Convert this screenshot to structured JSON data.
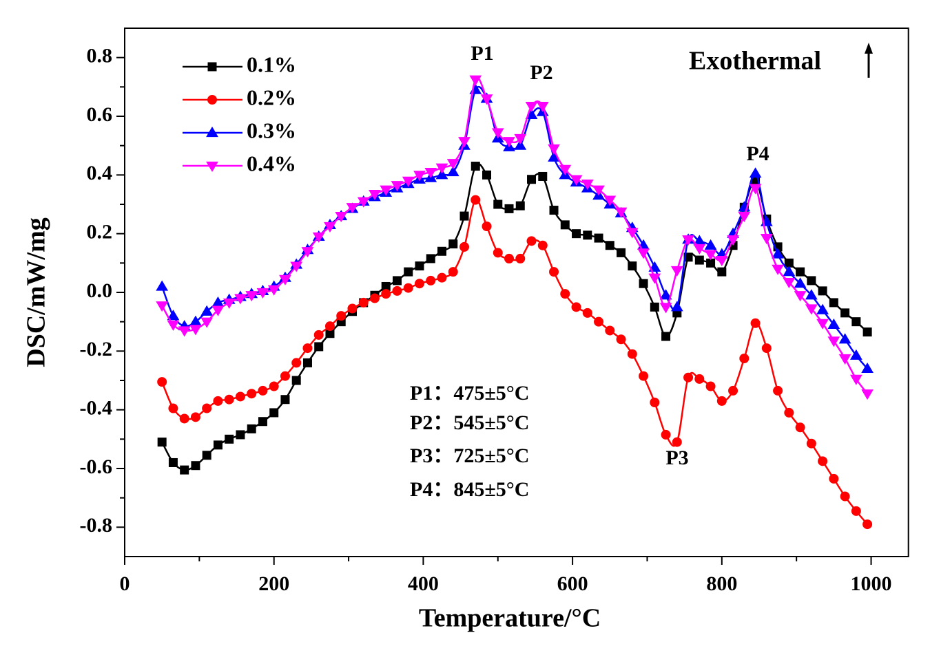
{
  "chart_data": {
    "type": "line",
    "xlabel": "Temperature/°C",
    "ylabel": "DSC/mW/mg",
    "xlim": [
      0,
      1050
    ],
    "ylim": [
      -0.9,
      0.9
    ],
    "xticks": [
      0,
      200,
      400,
      600,
      800,
      1000
    ],
    "yticks": [
      -0.8,
      -0.6,
      -0.4,
      -0.2,
      {
        "value": 0,
        "label": "0.0"
      },
      0.2,
      0.4,
      0.6,
      0.8
    ],
    "legend": "upper left",
    "x": [
      50,
      65,
      80,
      95,
      110,
      125,
      140,
      155,
      170,
      185,
      200,
      215,
      230,
      245,
      260,
      275,
      290,
      305,
      320,
      335,
      350,
      365,
      380,
      395,
      410,
      425,
      440,
      455,
      470,
      485,
      500,
      515,
      530,
      545,
      560,
      575,
      590,
      605,
      620,
      635,
      650,
      665,
      680,
      695,
      710,
      725,
      740,
      755,
      770,
      785,
      800,
      815,
      830,
      845,
      860,
      875,
      890,
      905,
      920,
      935,
      950,
      965,
      980,
      995
    ],
    "series": [
      {
        "name": "0.1%",
        "color": "#000000",
        "marker": "square",
        "values": [
          -0.51,
          -0.58,
          -0.605,
          -0.59,
          -0.555,
          -0.52,
          -0.5,
          -0.485,
          -0.465,
          -0.44,
          -0.41,
          -0.365,
          -0.3,
          -0.24,
          -0.185,
          -0.14,
          -0.1,
          -0.065,
          -0.035,
          -0.01,
          0.02,
          0.04,
          0.07,
          0.09,
          0.115,
          0.14,
          0.165,
          0.26,
          0.43,
          0.4,
          0.3,
          0.285,
          0.295,
          0.385,
          0.395,
          0.28,
          0.23,
          0.2,
          0.195,
          0.185,
          0.16,
          0.135,
          0.09,
          0.03,
          -0.05,
          -0.15,
          -0.07,
          0.12,
          0.11,
          0.1,
          0.07,
          0.16,
          0.29,
          0.38,
          0.25,
          0.155,
          0.1,
          0.07,
          0.04,
          0.005,
          -0.035,
          -0.07,
          -0.1,
          -0.135
        ]
      },
      {
        "name": "0.2%",
        "color": "#ff0000",
        "marker": "circle",
        "values": [
          -0.305,
          -0.395,
          -0.43,
          -0.425,
          -0.395,
          -0.37,
          -0.365,
          -0.355,
          -0.345,
          -0.335,
          -0.32,
          -0.285,
          -0.24,
          -0.19,
          -0.145,
          -0.115,
          -0.08,
          -0.055,
          -0.035,
          -0.02,
          -0.005,
          0.005,
          0.015,
          0.03,
          0.04,
          0.05,
          0.07,
          0.155,
          0.315,
          0.225,
          0.135,
          0.115,
          0.115,
          0.175,
          0.16,
          0.07,
          -0.005,
          -0.05,
          -0.07,
          -0.1,
          -0.13,
          -0.16,
          -0.21,
          -0.285,
          -0.375,
          -0.485,
          -0.51,
          -0.29,
          -0.295,
          -0.32,
          -0.37,
          -0.335,
          -0.225,
          -0.105,
          -0.19,
          -0.335,
          -0.41,
          -0.46,
          -0.515,
          -0.575,
          -0.635,
          -0.695,
          -0.745,
          -0.79
        ]
      },
      {
        "name": "0.3%",
        "color": "#0000ff",
        "marker": "triangle-up",
        "values": [
          0.02,
          -0.08,
          -0.115,
          -0.1,
          -0.065,
          -0.035,
          -0.025,
          -0.015,
          -0.005,
          0.005,
          0.02,
          0.05,
          0.095,
          0.145,
          0.19,
          0.23,
          0.26,
          0.285,
          0.31,
          0.325,
          0.34,
          0.355,
          0.37,
          0.385,
          0.39,
          0.4,
          0.41,
          0.5,
          0.69,
          0.66,
          0.525,
          0.495,
          0.5,
          0.605,
          0.615,
          0.46,
          0.4,
          0.375,
          0.355,
          0.33,
          0.3,
          0.27,
          0.22,
          0.16,
          0.085,
          -0.01,
          -0.05,
          0.18,
          0.175,
          0.16,
          0.13,
          0.2,
          0.29,
          0.405,
          0.24,
          0.13,
          0.07,
          0.03,
          -0.01,
          -0.06,
          -0.11,
          -0.16,
          -0.215,
          -0.26
        ]
      },
      {
        "name": "0.4%",
        "color": "#ff00ff",
        "marker": "triangle-down",
        "values": [
          -0.045,
          -0.11,
          -0.13,
          -0.125,
          -0.1,
          -0.06,
          -0.035,
          -0.02,
          -0.01,
          0,
          0.01,
          0.045,
          0.09,
          0.14,
          0.19,
          0.225,
          0.26,
          0.29,
          0.31,
          0.335,
          0.35,
          0.365,
          0.38,
          0.4,
          0.41,
          0.425,
          0.44,
          0.515,
          0.725,
          0.66,
          0.545,
          0.515,
          0.525,
          0.635,
          0.635,
          0.49,
          0.42,
          0.385,
          0.37,
          0.35,
          0.315,
          0.275,
          0.205,
          0.135,
          0.05,
          -0.05,
          0.075,
          0.18,
          0.15,
          0.13,
          0.11,
          0.18,
          0.26,
          0.355,
          0.185,
          0.08,
          0.035,
          -0.01,
          -0.055,
          -0.105,
          -0.165,
          -0.225,
          -0.295,
          -0.345
        ]
      }
    ],
    "annotations": [
      "P1",
      "P2",
      "P3",
      "P4",
      "Exothermal",
      "P1：475±5°C",
      "P2：545±5°C",
      "P3：725±5°C",
      "P4：845±5°C"
    ]
  }
}
